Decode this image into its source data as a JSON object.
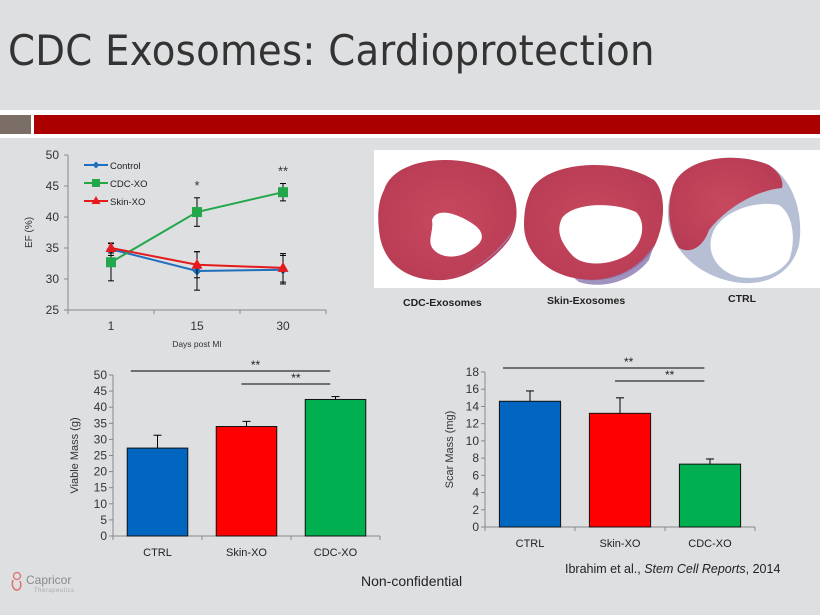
{
  "slide": {
    "title": "CDC Exosomes: Cardioprotection",
    "footer_center": "Non-confidential",
    "citation_author": "Ibrahim et al., ",
    "citation_journal": "Stem Cell Reports",
    "citation_year": ", 2014",
    "logo_name": "Capricor",
    "logo_sub": "Therapeutics",
    "colors": {
      "accent_red": "#ab0000",
      "accent_gray": "#7a6e66",
      "background": "#dedfe1"
    }
  },
  "histology": {
    "labels": [
      "CDC-Exosomes",
      "Skin-Exosomes",
      "CTRL"
    ]
  },
  "chart_data": [
    {
      "type": "line",
      "title": "",
      "xlabel": "Days post MI",
      "ylabel": "EF (%)",
      "x": [
        "1",
        "15",
        "30"
      ],
      "ylim": [
        25,
        50
      ],
      "yticks": [
        25,
        30,
        35,
        40,
        45,
        50
      ],
      "legend_position": "top-left",
      "series": [
        {
          "name": "Control",
          "color": "#1f6fbf",
          "marker": "diamond",
          "values": [
            34.8,
            31.3,
            31.5
          ],
          "errors": [
            1.0,
            3.1,
            2.3
          ]
        },
        {
          "name": "CDC-XO",
          "color": "#22a84a",
          "marker": "square",
          "values": [
            32.7,
            40.8,
            44.0
          ],
          "errors": [
            3.0,
            2.3,
            1.4
          ]
        },
        {
          "name": "Skin-XO",
          "color": "#e41a1c",
          "marker": "triangle",
          "values": [
            35.0,
            32.3,
            31.8
          ],
          "errors": [
            0.8,
            2.1,
            2.3
          ]
        }
      ],
      "annotations": [
        {
          "x": "15",
          "text": "*"
        },
        {
          "x": "30",
          "text": "**"
        }
      ]
    },
    {
      "type": "bar",
      "title": "",
      "xlabel": "",
      "ylabel": "Viable Mass (g)",
      "categories": [
        "CTRL",
        "Skin-XO",
        "CDC-XO"
      ],
      "values": [
        27.3,
        34.0,
        42.4
      ],
      "errors": [
        4.0,
        1.6,
        0.9
      ],
      "colors": [
        "#0066c0",
        "#ff0000",
        "#00b050"
      ],
      "ylim": [
        0,
        50
      ],
      "yticks": [
        0,
        5,
        10,
        15,
        20,
        25,
        30,
        35,
        40,
        45,
        50
      ],
      "significance": [
        {
          "from": "CTRL",
          "to": "CDC-XO",
          "text": "**"
        },
        {
          "from": "Skin-XO",
          "to": "CDC-XO",
          "text": "**"
        }
      ]
    },
    {
      "type": "bar",
      "title": "",
      "xlabel": "",
      "ylabel": "Scar Mass (mg)",
      "categories": [
        "CTRL",
        "Skin-XO",
        "CDC-XO"
      ],
      "values": [
        14.6,
        13.2,
        7.3
      ],
      "errors": [
        1.2,
        1.8,
        0.6
      ],
      "colors": [
        "#0066c0",
        "#ff0000",
        "#00b050"
      ],
      "ylim": [
        0,
        18
      ],
      "yticks": [
        0,
        2,
        4,
        6,
        8,
        10,
        12,
        14,
        16,
        18
      ],
      "significance": [
        {
          "from": "CTRL",
          "to": "CDC-XO",
          "text": "**"
        },
        {
          "from": "Skin-XO",
          "to": "CDC-XO",
          "text": "**"
        }
      ]
    }
  ]
}
